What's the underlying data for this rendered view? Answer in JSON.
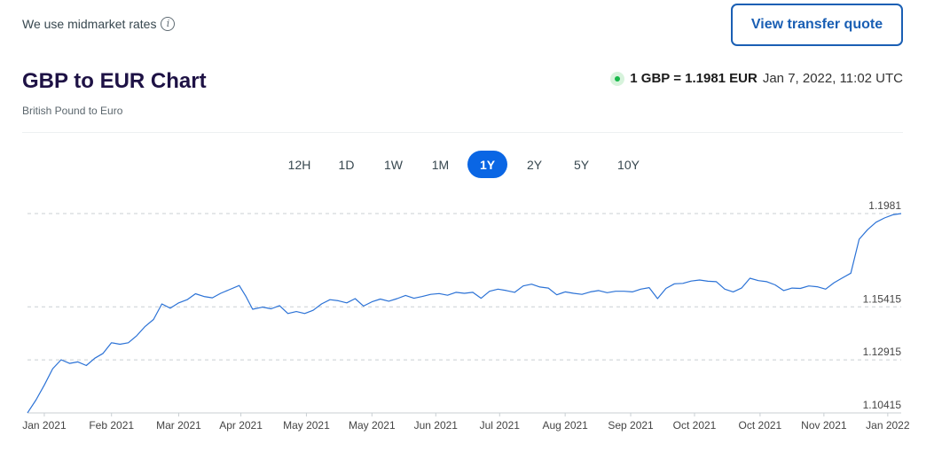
{
  "header": {
    "note": "We use midmarket rates",
    "info_icon": "info-icon",
    "quote_button": "View transfer quote"
  },
  "title": "GBP to EUR Chart",
  "subtitle": "British Pound to Euro",
  "rate": {
    "status_icon": "live-status-dot-icon",
    "status_color": "#18b84a",
    "value": "1 GBP = 1.1981 EUR",
    "time": "Jan 7, 2022, 11:02 UTC"
  },
  "ranges": [
    {
      "label": "12H",
      "active": false
    },
    {
      "label": "1D",
      "active": false
    },
    {
      "label": "1W",
      "active": false
    },
    {
      "label": "1M",
      "active": false
    },
    {
      "label": "1Y",
      "active": true
    },
    {
      "label": "2Y",
      "active": false
    },
    {
      "label": "5Y",
      "active": false
    },
    {
      "label": "10Y",
      "active": false
    }
  ],
  "colors": {
    "accent": "#0a66e4",
    "button_border": "#1a5fb4",
    "line": "#2b72d6"
  },
  "chart_data": {
    "type": "line",
    "title": "GBP to EUR Chart",
    "xlabel": "",
    "ylabel": "",
    "yticks": [
      1.10415,
      1.12915,
      1.15415,
      1.1981
    ],
    "ytick_labels": [
      "1.10415",
      "1.12915",
      "1.15415",
      "1.1981"
    ],
    "ylim": [
      1.10415,
      1.1981
    ],
    "xlim": [
      0,
      52
    ],
    "grid": true,
    "legend": "none",
    "xticks": [
      {
        "x": 1,
        "label": "Jan 2021"
      },
      {
        "x": 5,
        "label": "Feb 2021"
      },
      {
        "x": 9,
        "label": "Mar 2021"
      },
      {
        "x": 12.7,
        "label": "Apr 2021"
      },
      {
        "x": 16.6,
        "label": "May 2021"
      },
      {
        "x": 20.5,
        "label": "May 2021"
      },
      {
        "x": 24.3,
        "label": "Jun 2021"
      },
      {
        "x": 28.1,
        "label": "Jul 2021"
      },
      {
        "x": 32,
        "label": "Aug 2021"
      },
      {
        "x": 35.9,
        "label": "Sep 2021"
      },
      {
        "x": 39.7,
        "label": "Oct 2021"
      },
      {
        "x": 43.6,
        "label": "Oct 2021"
      },
      {
        "x": 47.4,
        "label": "Nov 2021"
      },
      {
        "x": 51.2,
        "label": "Jan 2022"
      }
    ],
    "series": [
      {
        "name": "",
        "values": [
          {
            "x": 0,
            "y": 1.1042
          },
          {
            "x": 0.5,
            "y": 1.1102
          },
          {
            "x": 1,
            "y": 1.1172
          },
          {
            "x": 1.5,
            "y": 1.125
          },
          {
            "x": 2,
            "y": 1.1292
          },
          {
            "x": 2.5,
            "y": 1.1275
          },
          {
            "x": 3,
            "y": 1.1282
          },
          {
            "x": 3.5,
            "y": 1.1265
          },
          {
            "x": 4,
            "y": 1.1299
          },
          {
            "x": 4.5,
            "y": 1.1322
          },
          {
            "x": 5,
            "y": 1.1372
          },
          {
            "x": 5.5,
            "y": 1.1365
          },
          {
            "x": 6,
            "y": 1.1372
          },
          {
            "x": 6.5,
            "y": 1.1405
          },
          {
            "x": 7,
            "y": 1.1449
          },
          {
            "x": 7.5,
            "y": 1.1482
          },
          {
            "x": 8,
            "y": 1.1555
          },
          {
            "x": 8.5,
            "y": 1.1535
          },
          {
            "x": 9,
            "y": 1.156
          },
          {
            "x": 9.5,
            "y": 1.1575
          },
          {
            "x": 10,
            "y": 1.1603
          },
          {
            "x": 10.5,
            "y": 1.159
          },
          {
            "x": 11,
            "y": 1.1584
          },
          {
            "x": 11.5,
            "y": 1.1605
          },
          {
            "x": 12,
            "y": 1.1622
          },
          {
            "x": 12.6,
            "y": 1.1642
          },
          {
            "x": 13,
            "y": 1.159
          },
          {
            "x": 13.4,
            "y": 1.153
          },
          {
            "x": 14,
            "y": 1.154
          },
          {
            "x": 14.5,
            "y": 1.1532
          },
          {
            "x": 15,
            "y": 1.1547
          },
          {
            "x": 15.5,
            "y": 1.151
          },
          {
            "x": 16,
            "y": 1.1519
          },
          {
            "x": 16.5,
            "y": 1.151
          },
          {
            "x": 17,
            "y": 1.1525
          },
          {
            "x": 17.5,
            "y": 1.1555
          },
          {
            "x": 18,
            "y": 1.1575
          },
          {
            "x": 18.5,
            "y": 1.157
          },
          {
            "x": 19,
            "y": 1.156
          },
          {
            "x": 19.5,
            "y": 1.158
          },
          {
            "x": 20,
            "y": 1.1545
          },
          {
            "x": 20.5,
            "y": 1.1565
          },
          {
            "x": 21,
            "y": 1.1578
          },
          {
            "x": 21.5,
            "y": 1.1568
          },
          {
            "x": 22,
            "y": 1.158
          },
          {
            "x": 22.5,
            "y": 1.1595
          },
          {
            "x": 23,
            "y": 1.1582
          },
          {
            "x": 23.5,
            "y": 1.159
          },
          {
            "x": 24,
            "y": 1.16
          },
          {
            "x": 24.5,
            "y": 1.1604
          },
          {
            "x": 25,
            "y": 1.1596
          },
          {
            "x": 25.5,
            "y": 1.161
          },
          {
            "x": 26,
            "y": 1.1605
          },
          {
            "x": 26.5,
            "y": 1.161
          },
          {
            "x": 27,
            "y": 1.1582
          },
          {
            "x": 27.5,
            "y": 1.1615
          },
          {
            "x": 28,
            "y": 1.1625
          },
          {
            "x": 28.5,
            "y": 1.1618
          },
          {
            "x": 29,
            "y": 1.161
          },
          {
            "x": 29.5,
            "y": 1.164
          },
          {
            "x": 30,
            "y": 1.1648
          },
          {
            "x": 30.5,
            "y": 1.1635
          },
          {
            "x": 31,
            "y": 1.163
          },
          {
            "x": 31.5,
            "y": 1.1598
          },
          {
            "x": 32,
            "y": 1.1612
          },
          {
            "x": 32.5,
            "y": 1.1605
          },
          {
            "x": 33,
            "y": 1.16
          },
          {
            "x": 33.5,
            "y": 1.1612
          },
          {
            "x": 34,
            "y": 1.1618
          },
          {
            "x": 34.5,
            "y": 1.1608
          },
          {
            "x": 35,
            "y": 1.1615
          },
          {
            "x": 35.5,
            "y": 1.1615
          },
          {
            "x": 36,
            "y": 1.1612
          },
          {
            "x": 36.5,
            "y": 1.1625
          },
          {
            "x": 37,
            "y": 1.1632
          },
          {
            "x": 37.5,
            "y": 1.158
          },
          {
            "x": 38,
            "y": 1.1628
          },
          {
            "x": 38.5,
            "y": 1.165
          },
          {
            "x": 39,
            "y": 1.1652
          },
          {
            "x": 39.5,
            "y": 1.1663
          },
          {
            "x": 40,
            "y": 1.1668
          },
          {
            "x": 40.5,
            "y": 1.1662
          },
          {
            "x": 41,
            "y": 1.166
          },
          {
            "x": 41.5,
            "y": 1.1625
          },
          {
            "x": 42,
            "y": 1.1612
          },
          {
            "x": 42.5,
            "y": 1.163
          },
          {
            "x": 43,
            "y": 1.1676
          },
          {
            "x": 43.5,
            "y": 1.1665
          },
          {
            "x": 44,
            "y": 1.166
          },
          {
            "x": 44.5,
            "y": 1.1645
          },
          {
            "x": 45,
            "y": 1.1618
          },
          {
            "x": 45.5,
            "y": 1.163
          },
          {
            "x": 46,
            "y": 1.1628
          },
          {
            "x": 46.5,
            "y": 1.164
          },
          {
            "x": 47,
            "y": 1.1636
          },
          {
            "x": 47.5,
            "y": 1.1625
          },
          {
            "x": 48,
            "y": 1.1655
          },
          {
            "x": 48.5,
            "y": 1.1678
          },
          {
            "x": 49,
            "y": 1.17
          },
          {
            "x": 49.5,
            "y": 1.186
          },
          {
            "x": 50,
            "y": 1.1905
          },
          {
            "x": 50.5,
            "y": 1.194
          },
          {
            "x": 51,
            "y": 1.196
          },
          {
            "x": 51.5,
            "y": 1.1975
          },
          {
            "x": 52,
            "y": 1.1981
          }
        ]
      }
    ]
  }
}
